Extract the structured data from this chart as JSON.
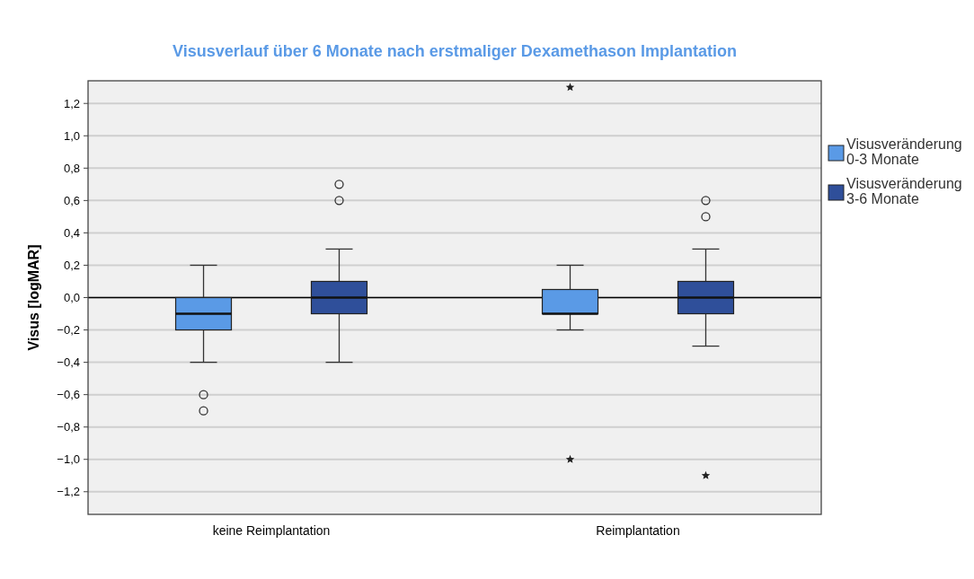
{
  "chart_data": {
    "type": "box",
    "title": "Visusverlauf über 6 Monate nach erstmaliger Dexamethason Implantation",
    "ylabel": "Visus [logMAR]",
    "categories": [
      "keine Reimplantation",
      "Reimplantation"
    ],
    "series": [
      {
        "name": "Visusveränderung 0-3 Monate",
        "color": "#5a9ae6",
        "boxes": [
          {
            "low": -0.4,
            "q1": -0.2,
            "median": -0.1,
            "q3": 0,
            "high": 0.2,
            "outliers": [
              -0.6,
              -0.7
            ]
          },
          {
            "low": -0.2,
            "q1": -0.1,
            "median": -0.1,
            "q3": 0.05,
            "high": 0.2,
            "outliers": [
              1.3,
              -1.0
            ]
          }
        ]
      },
      {
        "name": "Visusveränderung 3-6 Monate",
        "color": "#2f4f9a",
        "boxes": [
          {
            "low": -0.4,
            "q1": -0.1,
            "median": 0,
            "q3": 0.1,
            "high": 0.3,
            "outliers": [
              0.7,
              0.6
            ]
          },
          {
            "low": -0.3,
            "q1": -0.1,
            "median": 0,
            "q3": 0.1,
            "high": 0.3,
            "outliers": [
              0.6,
              0.5,
              -1.1
            ]
          }
        ]
      }
    ],
    "ylim": [
      -1.34,
      1.34
    ],
    "yticks": [
      {
        "value": -1.2,
        "label": "−1,2"
      },
      {
        "value": -1.0,
        "label": "−1,0"
      },
      {
        "value": -0.8,
        "label": "−0,8"
      },
      {
        "value": -0.6,
        "label": "−0,6"
      },
      {
        "value": -0.4,
        "label": "−0,4"
      },
      {
        "value": -0.2,
        "label": "−0,2"
      },
      {
        "value": 0,
        "label": "0,0"
      },
      {
        "value": 0.2,
        "label": "0,2"
      },
      {
        "value": 0.4,
        "label": "0,4"
      },
      {
        "value": 0.6,
        "label": "0,6"
      },
      {
        "value": 0.8,
        "label": "0,8"
      },
      {
        "value": 1.0,
        "label": "1,0"
      },
      {
        "value": 1.2,
        "label": "1,2"
      }
    ],
    "grid": "y",
    "legend": "right",
    "ref_lines": [
      {
        "axis": "y",
        "value": 0,
        "color": "#000000"
      }
    ]
  }
}
